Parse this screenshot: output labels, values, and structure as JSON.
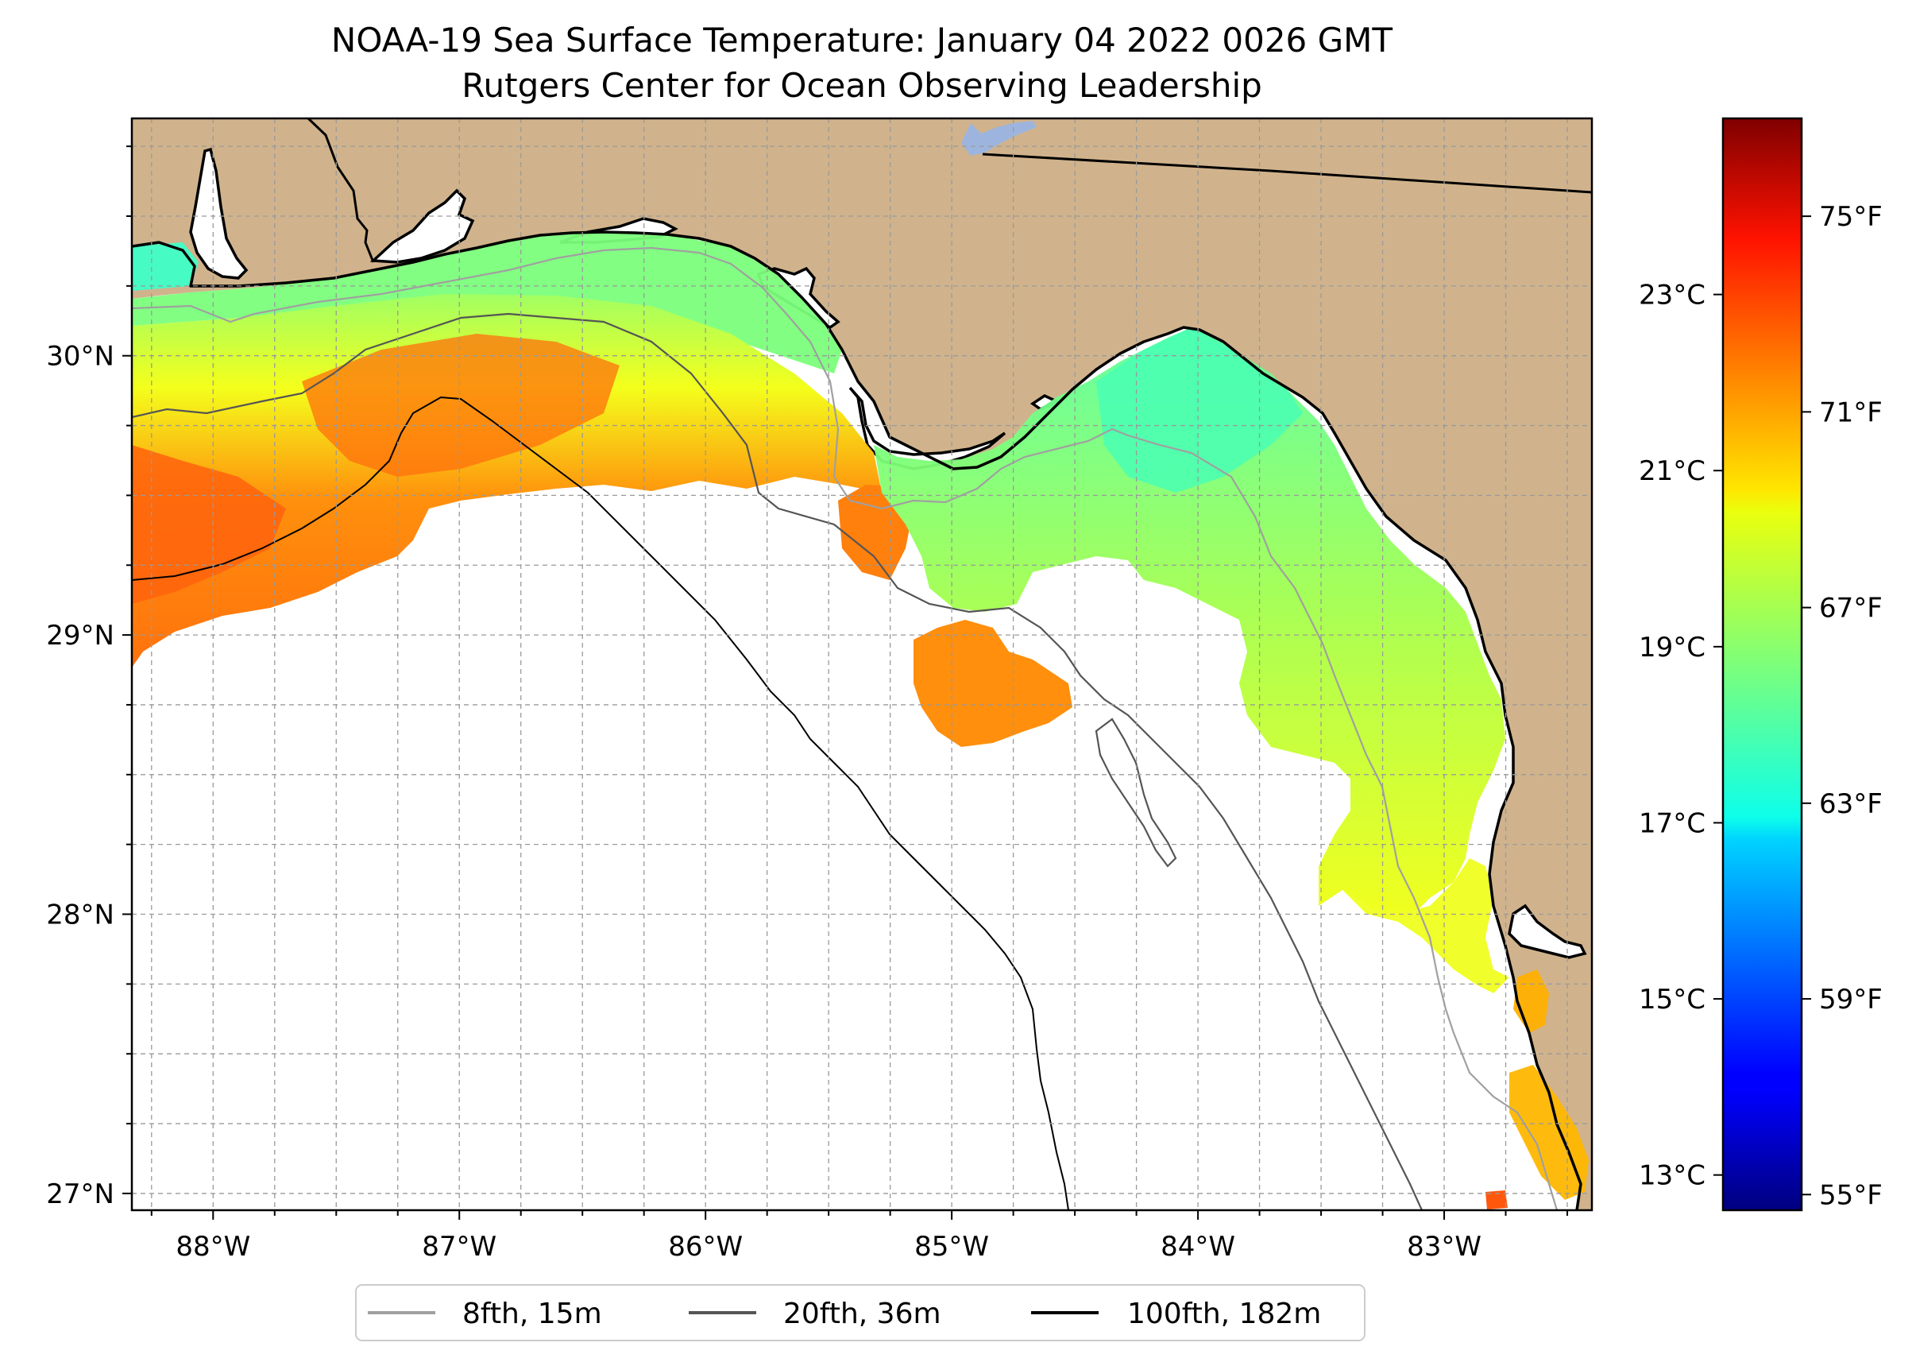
{
  "figure": {
    "title_line1": "NOAA-19 Sea Surface Temperature: January 04 2022 0026 GMT",
    "title_line2": "Rutgers Center for Ocean Observing Leadership"
  },
  "map": {
    "lon_range": [
      -88.33,
      -82.4
    ],
    "lat_range": [
      26.94,
      30.85
    ],
    "x_ticks": [
      {
        "value": -88,
        "label": "88°W"
      },
      {
        "value": -87,
        "label": "87°W"
      },
      {
        "value": -86,
        "label": "86°W"
      },
      {
        "value": -85,
        "label": "85°W"
      },
      {
        "value": -84,
        "label": "84°W"
      },
      {
        "value": -83,
        "label": "83°W"
      }
    ],
    "y_ticks": [
      {
        "value": 30,
        "label": "30°N"
      },
      {
        "value": 29,
        "label": "29°N"
      },
      {
        "value": 28,
        "label": "28°N"
      },
      {
        "value": 27,
        "label": "27°N"
      }
    ],
    "grid_step_deg": 0.25,
    "land_color": "#d0b38c",
    "lake_color": "#9db5de"
  },
  "legend": {
    "items": [
      {
        "label": "8fth, 15m",
        "color": "#a0a0a0"
      },
      {
        "label": "20fth, 36m",
        "color": "#555555"
      },
      {
        "label": "100fth, 182m",
        "color": "#000000"
      }
    ]
  },
  "colorbar": {
    "colormap": "jet",
    "range_c": [
      12.6,
      25.0
    ],
    "celsius_ticks": [
      {
        "value": 13,
        "label": "13°C"
      },
      {
        "value": 15,
        "label": "15°C"
      },
      {
        "value": 17,
        "label": "17°C"
      },
      {
        "value": 19,
        "label": "19°C"
      },
      {
        "value": 21,
        "label": "21°C"
      },
      {
        "value": 23,
        "label": "23°C"
      }
    ],
    "fahrenheit_ticks": [
      {
        "value": 55,
        "label": "55°F"
      },
      {
        "value": 59,
        "label": "59°F"
      },
      {
        "value": 63,
        "label": "63°F"
      },
      {
        "value": 67,
        "label": "67°F"
      },
      {
        "value": 71,
        "label": "71°F"
      },
      {
        "value": 75,
        "label": "75°F"
      }
    ]
  }
}
